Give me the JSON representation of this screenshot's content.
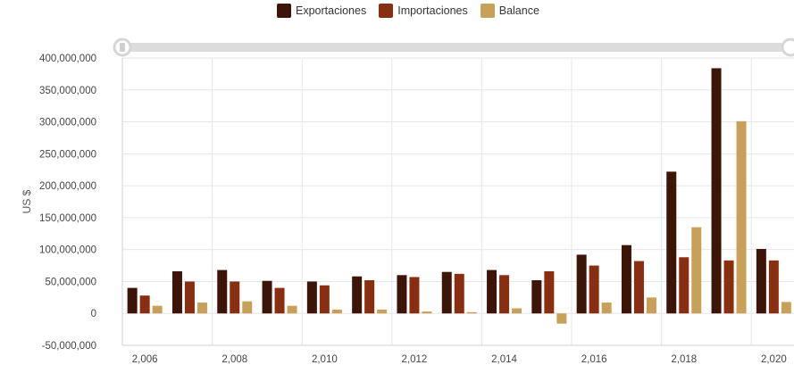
{
  "chart_data": {
    "type": "bar",
    "title": "",
    "xlabel": "",
    "ylabel": "US $",
    "ylim": [
      -50000000,
      400000000
    ],
    "yticks": [
      "400,000,000",
      "350,000,000",
      "300,000,000",
      "250,000,000",
      "200,000,000",
      "150,000,000",
      "100,000,000",
      "50,000,000",
      "0",
      "-50,000,000"
    ],
    "ytick_values": [
      400000000,
      350000000,
      300000000,
      250000000,
      200000000,
      150000000,
      100000000,
      50000000,
      0,
      -50000000
    ],
    "categories": [
      2006,
      2007,
      2008,
      2009,
      2010,
      2011,
      2012,
      2013,
      2014,
      2015,
      2016,
      2017,
      2018,
      2019,
      2020
    ],
    "xtick_labels": [
      "2,006",
      "2,008",
      "2,010",
      "2,012",
      "2,014",
      "2,016",
      "2,018",
      "2,020"
    ],
    "xtick_values": [
      2006,
      2008,
      2010,
      2012,
      2014,
      2016,
      2018,
      2020
    ],
    "legend_position": "top-center",
    "grid": true,
    "series": [
      {
        "name": "Exportaciones",
        "color": "#3d1408",
        "values": [
          40000000,
          66000000,
          68000000,
          51000000,
          50000000,
          58000000,
          60000000,
          65000000,
          68000000,
          52000000,
          92000000,
          107000000,
          222000000,
          384000000,
          101000000
        ]
      },
      {
        "name": "Importaciones",
        "color": "#8a2e12",
        "values": [
          28000000,
          50000000,
          50000000,
          40000000,
          44000000,
          52000000,
          57000000,
          62000000,
          60000000,
          66000000,
          75000000,
          82000000,
          88000000,
          83000000,
          83000000
        ]
      },
      {
        "name": "Balance",
        "color": "#c9a05a",
        "values": [
          12000000,
          17000000,
          19000000,
          12000000,
          6000000,
          6000000,
          3000000,
          2000000,
          8000000,
          -16000000,
          17000000,
          25000000,
          135000000,
          301000000,
          18000000
        ]
      }
    ]
  }
}
